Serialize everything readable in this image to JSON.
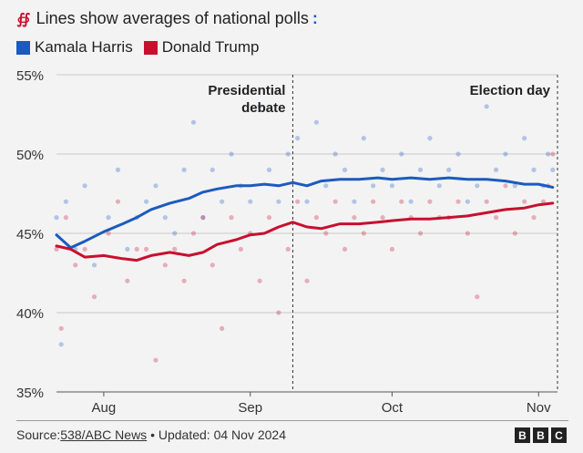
{
  "header": {
    "title": "Lines show averages of national polls",
    "dots_glyph": ":"
  },
  "legend": [
    {
      "label": "Kamala Harris",
      "color": "#1b5bbf"
    },
    {
      "label": "Donald Trump",
      "color": "#c8102e"
    }
  ],
  "footer": {
    "source_prefix": "Source: ",
    "source_link": "538/ABC News",
    "bullet": " • ",
    "updated": "Updated: 04 Nov 2024"
  },
  "brand": [
    "B",
    "B",
    "C"
  ],
  "chart_data": {
    "type": "line",
    "title": "Lines show averages of national polls",
    "xlabel": "",
    "ylabel": "",
    "ylim": [
      35,
      55
    ],
    "yticks": [
      35,
      40,
      45,
      50,
      55
    ],
    "ytick_labels": [
      "35%",
      "40%",
      "45%",
      "50%",
      "55%"
    ],
    "x_domain": [
      "2024-07-22",
      "2024-11-05"
    ],
    "xticks": [
      {
        "date": "2024-08-01",
        "label": "Aug"
      },
      {
        "date": "2024-09-01",
        "label": "Sep"
      },
      {
        "date": "2024-10-01",
        "label": "Oct"
      },
      {
        "date": "2024-11-01",
        "label": "Nov"
      }
    ],
    "annotations": [
      {
        "date": "2024-09-10",
        "label": "Presidential debate"
      },
      {
        "date": "2024-11-05",
        "label": "Election day"
      }
    ],
    "series": [
      {
        "name": "Kamala Harris",
        "color": "#1b5bbf",
        "x": [
          "2024-07-22",
          "2024-07-25",
          "2024-07-28",
          "2024-08-01",
          "2024-08-05",
          "2024-08-08",
          "2024-08-11",
          "2024-08-15",
          "2024-08-19",
          "2024-08-22",
          "2024-08-25",
          "2024-08-29",
          "2024-09-01",
          "2024-09-04",
          "2024-09-07",
          "2024-09-10",
          "2024-09-13",
          "2024-09-16",
          "2024-09-20",
          "2024-09-24",
          "2024-09-28",
          "2024-10-01",
          "2024-10-05",
          "2024-10-09",
          "2024-10-13",
          "2024-10-17",
          "2024-10-21",
          "2024-10-25",
          "2024-10-29",
          "2024-11-01",
          "2024-11-04"
        ],
        "values": [
          44.9,
          44.1,
          44.5,
          45.1,
          45.6,
          46.0,
          46.5,
          46.9,
          47.2,
          47.6,
          47.8,
          48.0,
          48.0,
          48.1,
          48.0,
          48.2,
          48.0,
          48.3,
          48.4,
          48.4,
          48.5,
          48.4,
          48.5,
          48.4,
          48.5,
          48.4,
          48.4,
          48.3,
          48.1,
          48.1,
          47.9
        ]
      },
      {
        "name": "Donald Trump",
        "color": "#c8102e",
        "x": [
          "2024-07-22",
          "2024-07-25",
          "2024-07-28",
          "2024-08-01",
          "2024-08-05",
          "2024-08-08",
          "2024-08-11",
          "2024-08-15",
          "2024-08-19",
          "2024-08-22",
          "2024-08-25",
          "2024-08-29",
          "2024-09-01",
          "2024-09-04",
          "2024-09-07",
          "2024-09-10",
          "2024-09-13",
          "2024-09-16",
          "2024-09-20",
          "2024-09-24",
          "2024-09-28",
          "2024-10-01",
          "2024-10-05",
          "2024-10-09",
          "2024-10-13",
          "2024-10-17",
          "2024-10-21",
          "2024-10-25",
          "2024-10-29",
          "2024-11-01",
          "2024-11-04"
        ],
        "values": [
          44.2,
          44.0,
          43.5,
          43.6,
          43.4,
          43.3,
          43.6,
          43.8,
          43.6,
          43.8,
          44.3,
          44.6,
          44.9,
          45.0,
          45.4,
          45.7,
          45.4,
          45.3,
          45.6,
          45.6,
          45.7,
          45.8,
          45.9,
          45.9,
          46.0,
          46.1,
          46.3,
          46.5,
          46.6,
          46.8,
          46.9
        ]
      }
    ],
    "polls": [
      {
        "date": "2024-07-22",
        "harris": 46,
        "trump": 44
      },
      {
        "date": "2024-07-23",
        "harris": 38,
        "trump": 39
      },
      {
        "date": "2024-07-24",
        "harris": 47,
        "trump": 46
      },
      {
        "date": "2024-07-26",
        "harris": 44,
        "trump": 43
      },
      {
        "date": "2024-07-28",
        "harris": 48,
        "trump": 44
      },
      {
        "date": "2024-07-30",
        "harris": 43,
        "trump": 41
      },
      {
        "date": "2024-08-02",
        "harris": 46,
        "trump": 45
      },
      {
        "date": "2024-08-04",
        "harris": 49,
        "trump": 47
      },
      {
        "date": "2024-08-06",
        "harris": 44,
        "trump": 42
      },
      {
        "date": "2024-08-08",
        "harris": 46,
        "trump": 44
      },
      {
        "date": "2024-08-10",
        "harris": 47,
        "trump": 44
      },
      {
        "date": "2024-08-12",
        "harris": 48,
        "trump": 37
      },
      {
        "date": "2024-08-14",
        "harris": 46,
        "trump": 43
      },
      {
        "date": "2024-08-16",
        "harris": 45,
        "trump": 44
      },
      {
        "date": "2024-08-18",
        "harris": 49,
        "trump": 42
      },
      {
        "date": "2024-08-20",
        "harris": 52,
        "trump": 45
      },
      {
        "date": "2024-08-22",
        "harris": 46,
        "trump": 46
      },
      {
        "date": "2024-08-24",
        "harris": 49,
        "trump": 43
      },
      {
        "date": "2024-08-26",
        "harris": 47,
        "trump": 39
      },
      {
        "date": "2024-08-28",
        "harris": 50,
        "trump": 46
      },
      {
        "date": "2024-08-30",
        "harris": 48,
        "trump": 44
      },
      {
        "date": "2024-09-01",
        "harris": 47,
        "trump": 45
      },
      {
        "date": "2024-09-03",
        "harris": 53,
        "trump": 42
      },
      {
        "date": "2024-09-05",
        "harris": 49,
        "trump": 46
      },
      {
        "date": "2024-09-07",
        "harris": 47,
        "trump": 40
      },
      {
        "date": "2024-09-09",
        "harris": 50,
        "trump": 44
      },
      {
        "date": "2024-09-11",
        "harris": 51,
        "trump": 47
      },
      {
        "date": "2024-09-13",
        "harris": 47,
        "trump": 42
      },
      {
        "date": "2024-09-15",
        "harris": 52,
        "trump": 46
      },
      {
        "date": "2024-09-17",
        "harris": 48,
        "trump": 45
      },
      {
        "date": "2024-09-19",
        "harris": 50,
        "trump": 47
      },
      {
        "date": "2024-09-21",
        "harris": 49,
        "trump": 44
      },
      {
        "date": "2024-09-23",
        "harris": 47,
        "trump": 46
      },
      {
        "date": "2024-09-25",
        "harris": 51,
        "trump": 45
      },
      {
        "date": "2024-09-27",
        "harris": 48,
        "trump": 47
      },
      {
        "date": "2024-09-29",
        "harris": 49,
        "trump": 46
      },
      {
        "date": "2024-10-01",
        "harris": 48,
        "trump": 44
      },
      {
        "date": "2024-10-03",
        "harris": 50,
        "trump": 47
      },
      {
        "date": "2024-10-05",
        "harris": 47,
        "trump": 46
      },
      {
        "date": "2024-10-07",
        "harris": 49,
        "trump": 45
      },
      {
        "date": "2024-10-09",
        "harris": 51,
        "trump": 47
      },
      {
        "date": "2024-10-11",
        "harris": 48,
        "trump": 46
      },
      {
        "date": "2024-10-13",
        "harris": 49,
        "trump": 46
      },
      {
        "date": "2024-10-15",
        "harris": 50,
        "trump": 47
      },
      {
        "date": "2024-10-17",
        "harris": 47,
        "trump": 45
      },
      {
        "date": "2024-10-19",
        "harris": 48,
        "trump": 41
      },
      {
        "date": "2024-10-21",
        "harris": 53,
        "trump": 47
      },
      {
        "date": "2024-10-23",
        "harris": 49,
        "trump": 46
      },
      {
        "date": "2024-10-25",
        "harris": 50,
        "trump": 48
      },
      {
        "date": "2024-10-27",
        "harris": 48,
        "trump": 45
      },
      {
        "date": "2024-10-29",
        "harris": 51,
        "trump": 47
      },
      {
        "date": "2024-10-31",
        "harris": 49,
        "trump": 46
      },
      {
        "date": "2024-11-02",
        "harris": 48,
        "trump": 47
      },
      {
        "date": "2024-11-03",
        "harris": 50,
        "trump": 48
      },
      {
        "date": "2024-11-04",
        "harris": 49,
        "trump": 50
      }
    ]
  }
}
